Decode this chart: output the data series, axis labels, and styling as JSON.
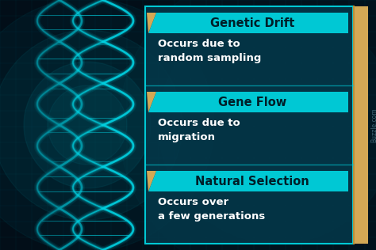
{
  "bg_dark": "#020e18",
  "bg_mid": "#043545",
  "bg_teal": "#055a6e",
  "panel_bg": "#04384a",
  "panel_border": "#00c8d4",
  "header_bar": "#00c8d4",
  "tab_color": "#d4a855",
  "tab_dark": "#b8903a",
  "header_text_color": "#001e28",
  "body_text_color": "#ffffff",
  "grid_color": "#007080",
  "dna_color": "#00d8e8",
  "dna_glow": "#00ffff",
  "entries": [
    {
      "title": "Genetic Drift",
      "body": "Occurs due to\nrandom sampling"
    },
    {
      "title": "Gene Flow",
      "body": "Occurs due to\nmigration"
    },
    {
      "title": "Natural Selection",
      "body": "Occurs over\na few generations"
    }
  ],
  "watermark": "Buzzle.com",
  "figsize": [
    4.74,
    3.16
  ],
  "dpi": 100
}
